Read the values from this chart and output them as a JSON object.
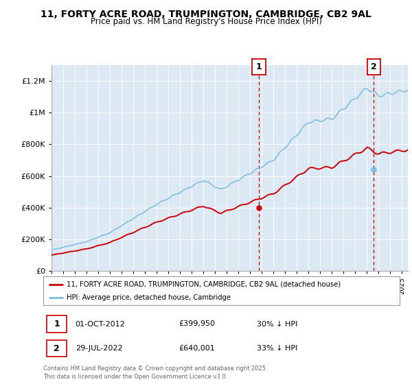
{
  "title_line1": "11, FORTY ACRE ROAD, TRUMPINGTON, CAMBRIDGE, CB2 9AL",
  "title_line2": "Price paid vs. HM Land Registry's House Price Index (HPI)",
  "ytick_values": [
    0,
    200000,
    400000,
    600000,
    800000,
    1000000,
    1200000
  ],
  "ytick_labels": [
    "£0",
    "£200K",
    "£400K",
    "£600K",
    "£800K",
    "£1M",
    "£1.2M"
  ],
  "ylim": [
    0,
    1300000
  ],
  "xlim_start": 1995,
  "xlim_end": 2025.5,
  "hpi_color": "#7bbce0",
  "price_color": "#cc0000",
  "bg_color": "#dce9f5",
  "sale1_date": 2012.75,
  "sale1_price": 399950,
  "sale2_date": 2022.58,
  "sale2_price": 640001,
  "legend_label1": "11, FORTY ACRE ROAD, TRUMPINGTON, CAMBRIDGE, CB2 9AL (detached house)",
  "legend_label2": "HPI: Average price, detached house, Cambridge",
  "annot1_label": "1",
  "annot1_date": "01-OCT-2012",
  "annot1_price": "£399,950",
  "annot1_hpi": "30% ↓ HPI",
  "annot2_label": "2",
  "annot2_date": "29-JUL-2022",
  "annot2_price": "£640,001",
  "annot2_hpi": "33% ↓ HPI",
  "footer": "Contains HM Land Registry data © Crown copyright and database right 2025.\nThis data is licensed under the Open Government Licence v3.0."
}
